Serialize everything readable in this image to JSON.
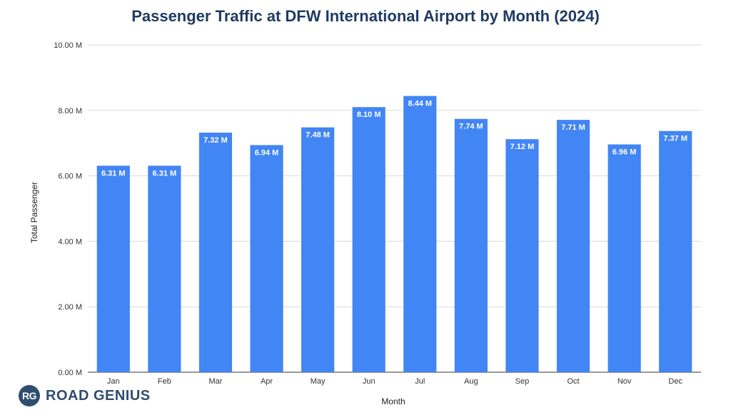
{
  "chart_data": {
    "type": "bar",
    "title": "Passenger Traffic at DFW International Airport by Month (2024)",
    "xlabel": "Month",
    "ylabel": "Total Passenger",
    "categories": [
      "Jan",
      "Feb",
      "Mar",
      "Apr",
      "May",
      "Jun",
      "Jul",
      "Aug",
      "Sep",
      "Oct",
      "Nov",
      "Dec"
    ],
    "values": [
      6.31,
      6.31,
      7.32,
      6.94,
      7.48,
      8.1,
      8.44,
      7.74,
      7.12,
      7.71,
      6.96,
      7.37
    ],
    "data_labels": [
      "6.31 M",
      "6.31 M",
      "7.32 M",
      "6.94 M",
      "7.48 M",
      "8.10 M",
      "8.44 M",
      "7.74 M",
      "7.12 M",
      "7.71 M",
      "6.96 M",
      "7.37 M"
    ],
    "ylim": [
      0,
      10
    ],
    "yticks": [
      0,
      2,
      4,
      6,
      8,
      10
    ],
    "ytick_labels": [
      "0.00 M",
      "2.00 M",
      "4.00 M",
      "6.00 M",
      "8.00 M",
      "10.00 M"
    ],
    "grid": true,
    "legend": "none",
    "bar_color": "#4285f4",
    "data_label_color": "#ffffff",
    "grid_color": "#d9d9d9"
  },
  "watermark": {
    "logo_text": "RG",
    "text": "ROAD GENIUS"
  }
}
